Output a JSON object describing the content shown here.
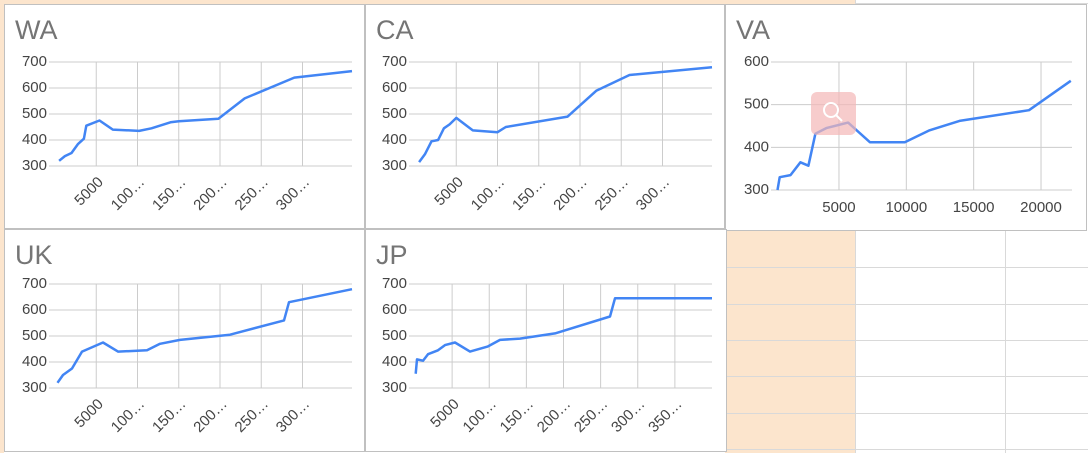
{
  "chart_data": [
    {
      "type": "line",
      "title": "WA",
      "color": "#4285f4",
      "grid": true,
      "x": [
        500,
        1200,
        2000,
        2800,
        3500,
        3800,
        5400,
        7000,
        10200,
        11700,
        14000,
        15000,
        19800,
        23000,
        29000,
        36000
      ],
      "values": [
        320,
        338,
        350,
        385,
        405,
        455,
        475,
        440,
        435,
        445,
        468,
        472,
        482,
        560,
        640,
        665
      ],
      "xlim": [
        0,
        36000
      ],
      "xticks": [
        5000,
        {
          "value": 10000,
          "label": "100…"
        },
        {
          "value": 15000,
          "label": "150…"
        },
        {
          "value": 20000,
          "label": "200…"
        },
        {
          "value": 25000,
          "label": "250…"
        },
        {
          "value": 30000,
          "label": "300…"
        }
      ],
      "ylim": [
        300,
        700
      ],
      "yticks": [
        300,
        400,
        500,
        600,
        700
      ]
    },
    {
      "type": "line",
      "title": "CA",
      "color": "#4285f4",
      "grid": true,
      "x": [
        500,
        1200,
        2000,
        2800,
        3500,
        4200,
        5000,
        7000,
        10000,
        11000,
        18500,
        22000,
        26000,
        36000
      ],
      "values": [
        315,
        345,
        395,
        400,
        445,
        460,
        485,
        437,
        430,
        450,
        490,
        590,
        650,
        680
      ],
      "xlim": [
        0,
        36000
      ],
      "xticks": [
        5000,
        {
          "value": 10000,
          "label": "100…"
        },
        {
          "value": 15000,
          "label": "150…"
        },
        {
          "value": 20000,
          "label": "200…"
        },
        {
          "value": 25000,
          "label": "250…"
        },
        {
          "value": 30000,
          "label": "300…"
        }
      ],
      "ylim": [
        300,
        700
      ],
      "yticks": [
        300,
        400,
        500,
        600,
        700
      ]
    },
    {
      "type": "line",
      "title": "VA",
      "color": "#4285f4",
      "grid": true,
      "x": [
        440,
        600,
        1400,
        2140,
        2730,
        3250,
        4060,
        5680,
        7300,
        9890,
        11730,
        13950,
        19110,
        22210
      ],
      "values": [
        300,
        330,
        335,
        365,
        357,
        432,
        445,
        458,
        412,
        412,
        440,
        462,
        487,
        556
      ],
      "xlim": [
        400,
        22300
      ],
      "xticks": [
        5000,
        10000,
        15000,
        20000
      ],
      "ylim": [
        300,
        600
      ],
      "yticks": [
        300,
        400,
        500,
        600
      ]
    },
    {
      "type": "line",
      "title": "UK",
      "color": "#4285f4",
      "grid": true,
      "x": [
        300,
        970,
        2060,
        3270,
        5820,
        7640,
        11150,
        12730,
        15150,
        21210,
        27760,
        28360,
        36000
      ],
      "values": [
        320,
        350,
        375,
        440,
        475,
        440,
        445,
        470,
        485,
        505,
        560,
        630,
        680
      ],
      "xlim": [
        0,
        36000
      ],
      "xticks": [
        5000,
        {
          "value": 10000,
          "label": "100…"
        },
        {
          "value": 15000,
          "label": "150…"
        },
        {
          "value": 20000,
          "label": "200…"
        },
        {
          "value": 25000,
          "label": "250…"
        },
        {
          "value": 30000,
          "label": "300…"
        }
      ],
      "ylim": [
        300,
        700
      ],
      "yticks": [
        300,
        400,
        500,
        600,
        700
      ]
    },
    {
      "type": "line",
      "title": "JP",
      "color": "#4285f4",
      "grid": true,
      "x": [
        100,
        270,
        1080,
        1750,
        3100,
        4040,
        5390,
        7410,
        9830,
        11450,
        14140,
        18850,
        26260,
        26940,
        40000
      ],
      "values": [
        355,
        410,
        405,
        430,
        445,
        465,
        475,
        440,
        460,
        485,
        490,
        510,
        575,
        645,
        645
      ],
      "xlim": [
        0,
        40000
      ],
      "xticks": [
        5000,
        {
          "value": 10000,
          "label": "100…"
        },
        {
          "value": 15000,
          "label": "150…"
        },
        {
          "value": 20000,
          "label": "200…"
        },
        {
          "value": 25000,
          "label": "250…"
        },
        {
          "value": 30000,
          "label": "300…"
        },
        {
          "value": 35000,
          "label": "350…"
        }
      ],
      "ylim": [
        300,
        700
      ],
      "yticks": [
        300,
        400,
        500,
        600,
        700
      ]
    }
  ]
}
